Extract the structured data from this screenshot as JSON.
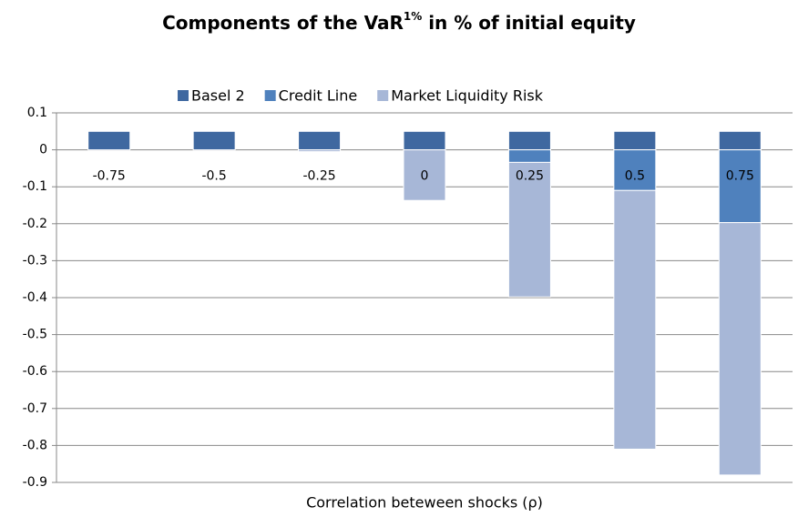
{
  "chart_data": {
    "type": "stacked_bar",
    "title": {
      "text": "Components of the VaR",
      "sup": "1%",
      "rest": " in % of initial equity"
    },
    "x_label": "Correlation beteween shocks (ρ)",
    "categories": [
      "-0.75",
      "-0.5",
      "-0.25",
      "0",
      "0.25",
      "0.5",
      "0.75"
    ],
    "series": [
      {
        "name": "Basel 2",
        "color": "#3f68a0",
        "values": [
          0.05,
          0.05,
          0.05,
          0.05,
          0.05,
          0.05,
          0.05
        ]
      },
      {
        "name": "Credit Line",
        "color": "#4f81bd",
        "values": [
          0,
          0,
          0,
          0,
          -0.034,
          -0.11,
          -0.197
        ]
      },
      {
        "name": "Market Liquidity Risk",
        "color": "#a7b7d7",
        "values": [
          0,
          0,
          -0.005,
          -0.137,
          -0.364,
          -0.7,
          -0.683
        ]
      }
    ],
    "ylim": [
      -0.9,
      0.1
    ],
    "yticks": [
      0.1,
      0,
      -0.1,
      -0.2,
      -0.3,
      -0.4,
      -0.5,
      -0.6,
      -0.7,
      -0.8,
      -0.9
    ],
    "grid": true,
    "legend": "top"
  }
}
